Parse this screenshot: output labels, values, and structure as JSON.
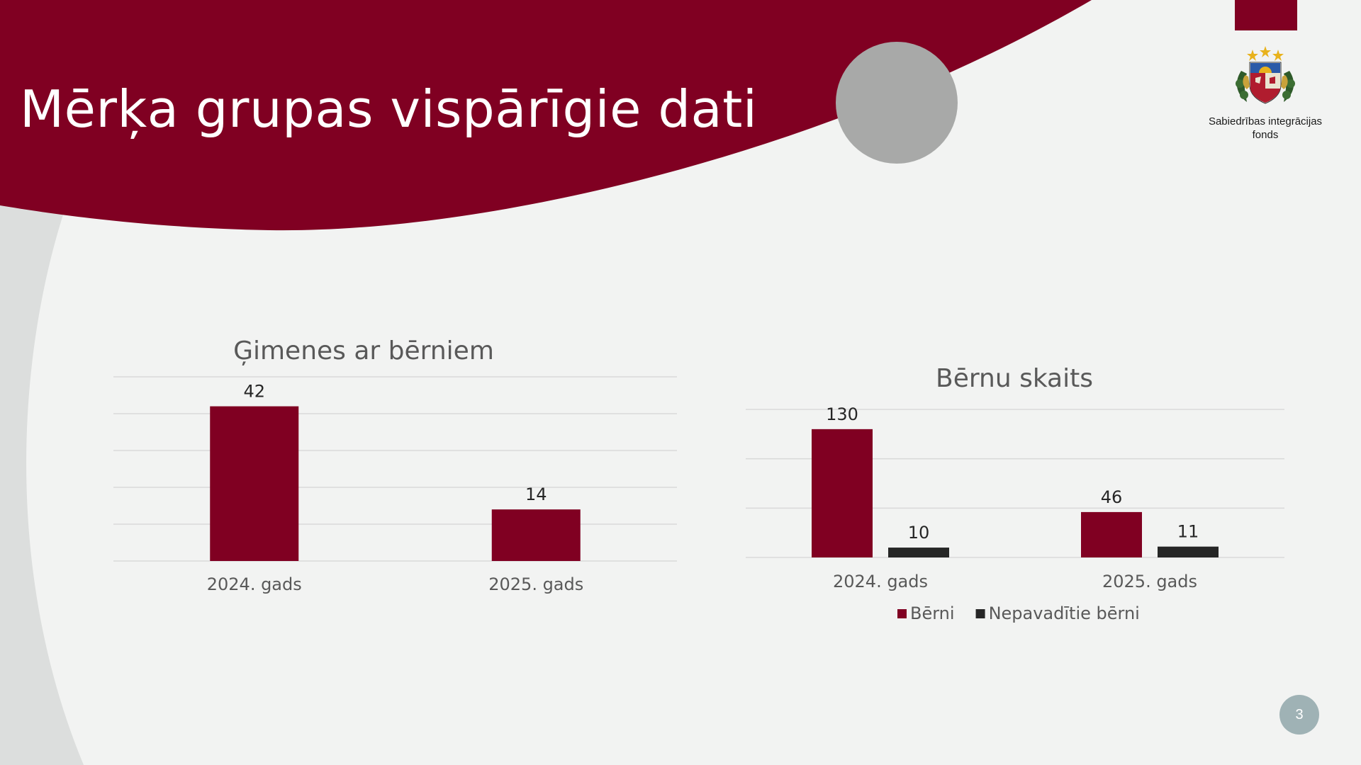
{
  "slide": {
    "title": "Mērķa grupas vispārīgie dati",
    "page_number": "3",
    "logo_text_line1": "Sabiedrības integrācijas",
    "logo_text_line2": "fonds",
    "colors": {
      "brand": "#800022",
      "accent_gray": "#a8a9a8",
      "badge": "#9fb2b5",
      "background": "#f2f3f2"
    }
  },
  "chart_data": [
    {
      "type": "bar",
      "title": "Ģimenes ar bērniem",
      "categories": [
        "2024. gads",
        "2025. gads"
      ],
      "series": [
        {
          "values": [
            42,
            14
          ],
          "color": "#800022"
        }
      ],
      "ylim": [
        0,
        50
      ],
      "grid": true,
      "legend": "none",
      "data_labels": true
    },
    {
      "type": "bar",
      "title": "Bērnu skaits",
      "categories": [
        "2024. gads",
        "2025. gads"
      ],
      "series": [
        {
          "name": "Bērni",
          "values": [
            130,
            46
          ],
          "color": "#800022"
        },
        {
          "name": "Nepavadītie bērni",
          "values": [
            10,
            11
          ],
          "color": "#262626"
        }
      ],
      "ylim": [
        0,
        150
      ],
      "grid": true,
      "legend": "bottom",
      "data_labels": true
    }
  ]
}
